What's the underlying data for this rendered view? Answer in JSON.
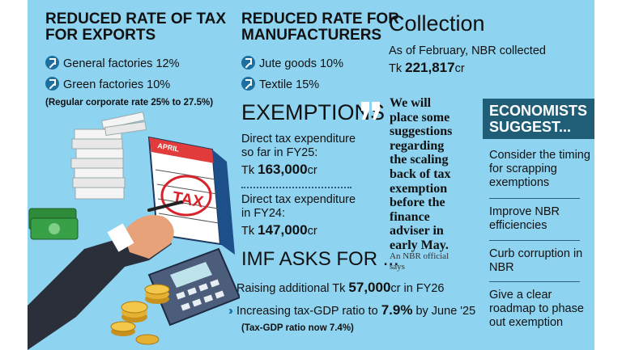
{
  "exports": {
    "title_line1": "REDUCED RATE OF TAX",
    "title_line2": "FOR EXPORTS",
    "items": [
      "General factories 12%",
      "Green factories 10%"
    ],
    "note": "(Regular corporate rate 25% to 27.5%)"
  },
  "manufacturers": {
    "title_line1": "REDUCED RATE FOR",
    "title_line2": "MANUFACTURERS",
    "items": [
      "Jute goods 10%",
      "Textile 15%"
    ]
  },
  "collection": {
    "title": "Collection",
    "line1": "As of February, NBR collected",
    "prefix": "Tk",
    "amount": "221,817",
    "suffix": "cr"
  },
  "exemptions": {
    "title": "EXEMPTIONS",
    "item1_line1": "Direct tax expenditure",
    "item1_line2": "so far in FY25:",
    "item1_prefix": "Tk",
    "item1_amount": "163,000",
    "item1_suffix": "cr",
    "item2_line1": "Direct tax expenditure",
    "item2_line2": "in FY24:",
    "item2_prefix": "Tk",
    "item2_amount": "147,000",
    "item2_suffix": "cr"
  },
  "imf": {
    "title": "IMF ASKS FOR ...",
    "item1_pre": "Raising additional Tk",
    "item1_amount": "57,000",
    "item1_post": "cr in FY26",
    "item2_pre": "Increasing tax-GDP ratio to",
    "item2_amount": "7.9%",
    "item2_post": "by June '25",
    "note": "(Tax-GDP ratio now 7.4%)"
  },
  "quote": {
    "lines": [
      "We will",
      "place some",
      "suggestions",
      "regarding",
      "the scaling",
      "back of tax",
      "exemption",
      "before the",
      "finance",
      "adviser in",
      "early May."
    ],
    "attribution_line1": "An NBR official",
    "attribution_line2": "says"
  },
  "economists": {
    "title_line1": "ECONOMISTS",
    "title_line2": "SUGGEST...",
    "items": [
      [
        "Consider the timing",
        "for scrapping",
        "exemptions"
      ],
      [
        "Improve NBR",
        "efficiencies"
      ],
      [
        "Curb corruption in",
        "NBR"
      ],
      [
        "Give a clear",
        "roadmap to phase",
        "out exemption"
      ]
    ]
  },
  "illustration": {
    "calendar_month": "APRIL",
    "stamp_text": "TAX"
  },
  "colors": {
    "background": "#8ed3f0",
    "accent": "#1d6fa0",
    "economists_box": "#1f5e76"
  }
}
